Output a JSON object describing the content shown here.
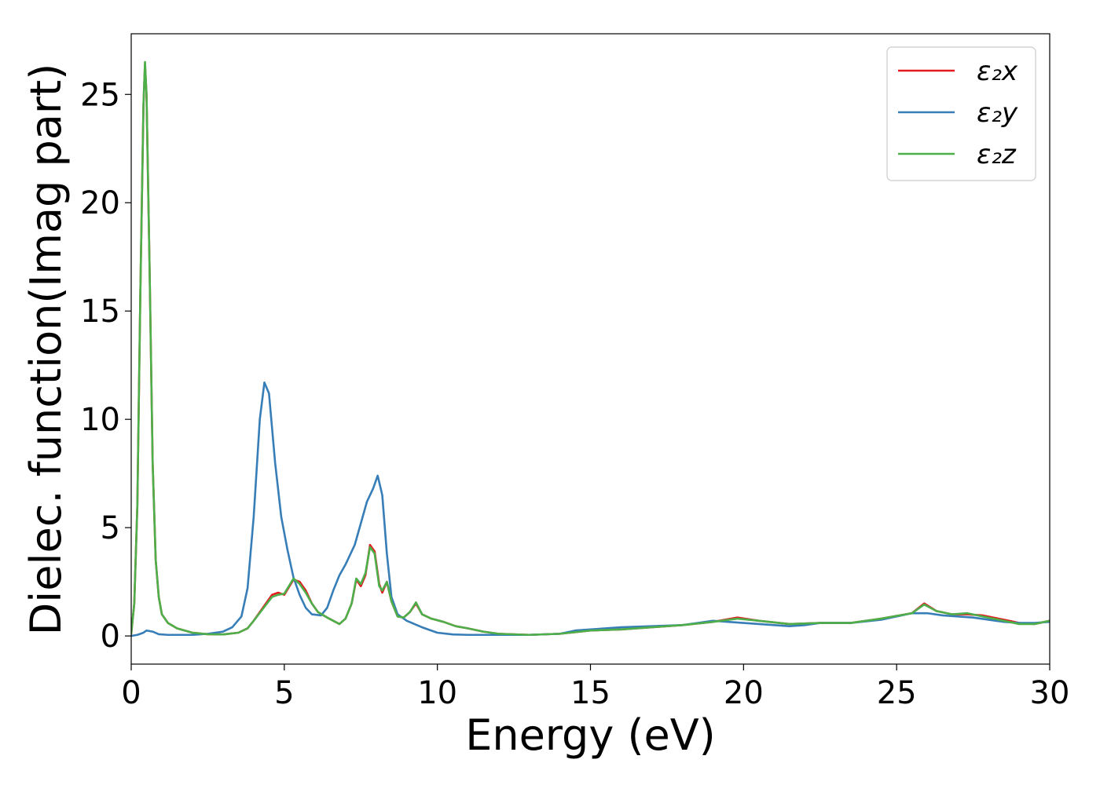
{
  "chart_data": {
    "type": "line",
    "title": "",
    "xlabel": "Energy (eV)",
    "ylabel": "Dielec. function(Imag part)",
    "xlim": [
      0,
      30
    ],
    "ylim": [
      -1.3,
      27.8
    ],
    "xticks": [
      0,
      5,
      10,
      15,
      20,
      25,
      30
    ],
    "yticks": [
      0,
      5,
      10,
      15,
      20,
      25
    ],
    "grid": false,
    "legend_position": "top-right",
    "series": [
      {
        "name": "ε₂x",
        "color": "#e41a1c",
        "points": [
          [
            0,
            0.1
          ],
          [
            0.1,
            1.5
          ],
          [
            0.2,
            6
          ],
          [
            0.3,
            16
          ],
          [
            0.4,
            24.5
          ],
          [
            0.45,
            26.4
          ],
          [
            0.5,
            25
          ],
          [
            0.6,
            17
          ],
          [
            0.7,
            8
          ],
          [
            0.8,
            3.5
          ],
          [
            0.9,
            1.8
          ],
          [
            1.0,
            1.0
          ],
          [
            1.2,
            0.6
          ],
          [
            1.5,
            0.35
          ],
          [
            2.0,
            0.15
          ],
          [
            2.5,
            0.08
          ],
          [
            3.0,
            0.07
          ],
          [
            3.5,
            0.15
          ],
          [
            3.8,
            0.35
          ],
          [
            4.0,
            0.7
          ],
          [
            4.3,
            1.3
          ],
          [
            4.6,
            1.9
          ],
          [
            4.8,
            2.0
          ],
          [
            5.0,
            1.9
          ],
          [
            5.3,
            2.6
          ],
          [
            5.5,
            2.5
          ],
          [
            5.7,
            2.1
          ],
          [
            5.9,
            1.5
          ],
          [
            6.1,
            1.1
          ],
          [
            6.4,
            0.85
          ],
          [
            6.6,
            0.7
          ],
          [
            6.8,
            0.55
          ],
          [
            7.0,
            0.8
          ],
          [
            7.2,
            1.5
          ],
          [
            7.35,
            2.6
          ],
          [
            7.5,
            2.3
          ],
          [
            7.65,
            2.8
          ],
          [
            7.8,
            4.2
          ],
          [
            7.95,
            3.9
          ],
          [
            8.1,
            2.4
          ],
          [
            8.2,
            2.0
          ],
          [
            8.35,
            2.5
          ],
          [
            8.5,
            1.6
          ],
          [
            8.7,
            0.9
          ],
          [
            8.9,
            0.85
          ],
          [
            9.1,
            1.1
          ],
          [
            9.3,
            1.5
          ],
          [
            9.5,
            1.0
          ],
          [
            9.8,
            0.8
          ],
          [
            10.2,
            0.65
          ],
          [
            10.6,
            0.45
          ],
          [
            11.0,
            0.35
          ],
          [
            11.5,
            0.2
          ],
          [
            12.0,
            0.1
          ],
          [
            13.0,
            0.05
          ],
          [
            14.0,
            0.1
          ],
          [
            15.0,
            0.25
          ],
          [
            16.0,
            0.3
          ],
          [
            17.0,
            0.4
          ],
          [
            18.0,
            0.5
          ],
          [
            19.0,
            0.65
          ],
          [
            19.8,
            0.85
          ],
          [
            20.5,
            0.7
          ],
          [
            21.5,
            0.55
          ],
          [
            22.5,
            0.6
          ],
          [
            23.5,
            0.6
          ],
          [
            24.5,
            0.8
          ],
          [
            25.5,
            1.05
          ],
          [
            25.9,
            1.5
          ],
          [
            26.3,
            1.15
          ],
          [
            26.8,
            1.0
          ],
          [
            27.3,
            1.0
          ],
          [
            27.8,
            0.95
          ],
          [
            28.5,
            0.75
          ],
          [
            29.0,
            0.6
          ],
          [
            29.5,
            0.55
          ],
          [
            30.0,
            0.7
          ]
        ]
      },
      {
        "name": "ε₂y",
        "color": "#377eb8",
        "points": [
          [
            0,
            0.0
          ],
          [
            0.2,
            0.05
          ],
          [
            0.4,
            0.15
          ],
          [
            0.5,
            0.25
          ],
          [
            0.7,
            0.2
          ],
          [
            0.9,
            0.08
          ],
          [
            1.2,
            0.05
          ],
          [
            2.0,
            0.05
          ],
          [
            2.5,
            0.1
          ],
          [
            3.0,
            0.2
          ],
          [
            3.3,
            0.4
          ],
          [
            3.6,
            0.9
          ],
          [
            3.8,
            2.2
          ],
          [
            4.0,
            5.5
          ],
          [
            4.2,
            10.0
          ],
          [
            4.35,
            11.7
          ],
          [
            4.5,
            11.2
          ],
          [
            4.7,
            8.0
          ],
          [
            4.9,
            5.5
          ],
          [
            5.1,
            4.0
          ],
          [
            5.3,
            2.7
          ],
          [
            5.5,
            1.9
          ],
          [
            5.7,
            1.3
          ],
          [
            5.9,
            1.0
          ],
          [
            6.2,
            0.95
          ],
          [
            6.4,
            1.3
          ],
          [
            6.6,
            2.1
          ],
          [
            6.8,
            2.8
          ],
          [
            7.0,
            3.3
          ],
          [
            7.3,
            4.2
          ],
          [
            7.5,
            5.2
          ],
          [
            7.7,
            6.2
          ],
          [
            7.9,
            6.8
          ],
          [
            8.05,
            7.4
          ],
          [
            8.2,
            6.5
          ],
          [
            8.35,
            3.8
          ],
          [
            8.5,
            1.8
          ],
          [
            8.7,
            1.0
          ],
          [
            9.0,
            0.7
          ],
          [
            9.5,
            0.4
          ],
          [
            10.0,
            0.15
          ],
          [
            10.5,
            0.07
          ],
          [
            11.0,
            0.05
          ],
          [
            12.0,
            0.05
          ],
          [
            13.0,
            0.05
          ],
          [
            14.0,
            0.1
          ],
          [
            14.5,
            0.25
          ],
          [
            15.0,
            0.3
          ],
          [
            15.5,
            0.35
          ],
          [
            16.0,
            0.4
          ],
          [
            17.0,
            0.45
          ],
          [
            18.0,
            0.5
          ],
          [
            19.0,
            0.7
          ],
          [
            19.5,
            0.65
          ],
          [
            20.0,
            0.6
          ],
          [
            21.0,
            0.5
          ],
          [
            21.5,
            0.45
          ],
          [
            22.0,
            0.5
          ],
          [
            22.5,
            0.6
          ],
          [
            23.5,
            0.6
          ],
          [
            24.5,
            0.75
          ],
          [
            25.5,
            1.05
          ],
          [
            26.0,
            1.05
          ],
          [
            26.5,
            0.95
          ],
          [
            27.0,
            0.9
          ],
          [
            27.5,
            0.85
          ],
          [
            28.0,
            0.75
          ],
          [
            28.5,
            0.65
          ],
          [
            29.0,
            0.6
          ],
          [
            29.5,
            0.6
          ],
          [
            30.0,
            0.65
          ]
        ]
      },
      {
        "name": "ε₂z",
        "color": "#4daf4a",
        "points": [
          [
            0,
            0.1
          ],
          [
            0.1,
            1.5
          ],
          [
            0.2,
            6
          ],
          [
            0.3,
            16
          ],
          [
            0.4,
            24.5
          ],
          [
            0.45,
            26.5
          ],
          [
            0.5,
            25
          ],
          [
            0.6,
            17
          ],
          [
            0.7,
            8
          ],
          [
            0.8,
            3.5
          ],
          [
            0.9,
            1.8
          ],
          [
            1.0,
            1.0
          ],
          [
            1.2,
            0.6
          ],
          [
            1.5,
            0.35
          ],
          [
            2.0,
            0.15
          ],
          [
            2.5,
            0.08
          ],
          [
            3.0,
            0.07
          ],
          [
            3.5,
            0.15
          ],
          [
            3.8,
            0.35
          ],
          [
            4.0,
            0.7
          ],
          [
            4.3,
            1.25
          ],
          [
            4.6,
            1.8
          ],
          [
            4.8,
            1.9
          ],
          [
            5.0,
            1.95
          ],
          [
            5.3,
            2.65
          ],
          [
            5.5,
            2.4
          ],
          [
            5.7,
            2.0
          ],
          [
            5.9,
            1.5
          ],
          [
            6.1,
            1.1
          ],
          [
            6.4,
            0.85
          ],
          [
            6.6,
            0.7
          ],
          [
            6.8,
            0.55
          ],
          [
            7.0,
            0.8
          ],
          [
            7.2,
            1.5
          ],
          [
            7.35,
            2.65
          ],
          [
            7.5,
            2.4
          ],
          [
            7.65,
            2.9
          ],
          [
            7.8,
            4.1
          ],
          [
            7.95,
            3.8
          ],
          [
            8.1,
            2.3
          ],
          [
            8.2,
            2.1
          ],
          [
            8.35,
            2.5
          ],
          [
            8.5,
            1.6
          ],
          [
            8.7,
            0.9
          ],
          [
            8.9,
            0.85
          ],
          [
            9.1,
            1.1
          ],
          [
            9.3,
            1.55
          ],
          [
            9.5,
            1.0
          ],
          [
            9.8,
            0.8
          ],
          [
            10.2,
            0.65
          ],
          [
            10.6,
            0.45
          ],
          [
            11.0,
            0.35
          ],
          [
            11.5,
            0.2
          ],
          [
            12.0,
            0.1
          ],
          [
            13.0,
            0.05
          ],
          [
            14.0,
            0.1
          ],
          [
            15.0,
            0.25
          ],
          [
            16.0,
            0.3
          ],
          [
            17.0,
            0.4
          ],
          [
            18.0,
            0.5
          ],
          [
            19.0,
            0.65
          ],
          [
            19.8,
            0.8
          ],
          [
            20.5,
            0.7
          ],
          [
            21.5,
            0.55
          ],
          [
            22.5,
            0.6
          ],
          [
            23.5,
            0.6
          ],
          [
            24.5,
            0.8
          ],
          [
            25.5,
            1.05
          ],
          [
            25.9,
            1.45
          ],
          [
            26.3,
            1.15
          ],
          [
            26.8,
            1.0
          ],
          [
            27.3,
            1.05
          ],
          [
            27.8,
            0.9
          ],
          [
            28.5,
            0.7
          ],
          [
            29.0,
            0.55
          ],
          [
            29.5,
            0.55
          ],
          [
            30.0,
            0.7
          ]
        ]
      }
    ]
  }
}
